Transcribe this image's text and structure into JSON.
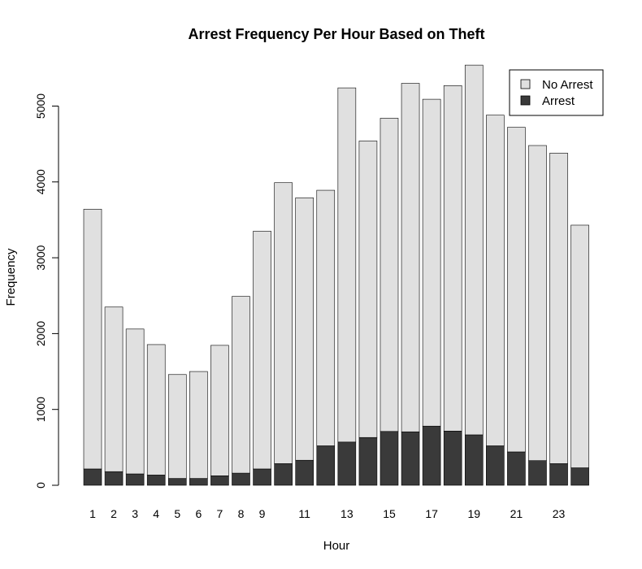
{
  "chart_data": {
    "type": "bar",
    "stacked": true,
    "title": "Arrest Frequency Per Hour Based on Theft",
    "xlabel": "Hour",
    "ylabel": "Frequency",
    "ylim": [
      0,
      5600
    ],
    "y_ticks": [
      0,
      1000,
      2000,
      3000,
      4000,
      5000
    ],
    "x_tick_labels": [
      "1",
      "2",
      "3",
      "4",
      "5",
      "6",
      "7",
      "8",
      "9",
      "11",
      "13",
      "15",
      "17",
      "19",
      "21",
      "23"
    ],
    "categories": [
      "1",
      "2",
      "3",
      "4",
      "5",
      "6",
      "7",
      "8",
      "9",
      "10",
      "11",
      "12",
      "13",
      "14",
      "15",
      "16",
      "17",
      "18",
      "19",
      "20",
      "21",
      "22",
      "23",
      "24"
    ],
    "totals": [
      3640,
      2350,
      2060,
      1855,
      1460,
      1500,
      1845,
      2490,
      3350,
      3990,
      3790,
      3890,
      5240,
      4540,
      4840,
      5300,
      5090,
      5270,
      5540,
      4880,
      4720,
      4480,
      4380,
      3430
    ],
    "series": [
      {
        "name": "Arrest",
        "color": "#3a3a3a",
        "values": [
          215,
          180,
          150,
          135,
          90,
          90,
          125,
          160,
          215,
          285,
          330,
          520,
          570,
          630,
          710,
          705,
          780,
          715,
          665,
          520,
          440,
          325,
          285,
          230
        ]
      },
      {
        "name": "No Arrest",
        "color": "#e0e0e0",
        "values": [
          3425,
          2170,
          1910,
          1720,
          1370,
          1410,
          1720,
          2330,
          3135,
          3705,
          3460,
          3370,
          4670,
          3910,
          4130,
          4595,
          4310,
          4555,
          4875,
          4360,
          4280,
          4155,
          4095,
          3200
        ]
      }
    ],
    "legend": {
      "placement": "top-right",
      "entries": [
        "No Arrest",
        "Arrest"
      ]
    },
    "grid": false
  }
}
